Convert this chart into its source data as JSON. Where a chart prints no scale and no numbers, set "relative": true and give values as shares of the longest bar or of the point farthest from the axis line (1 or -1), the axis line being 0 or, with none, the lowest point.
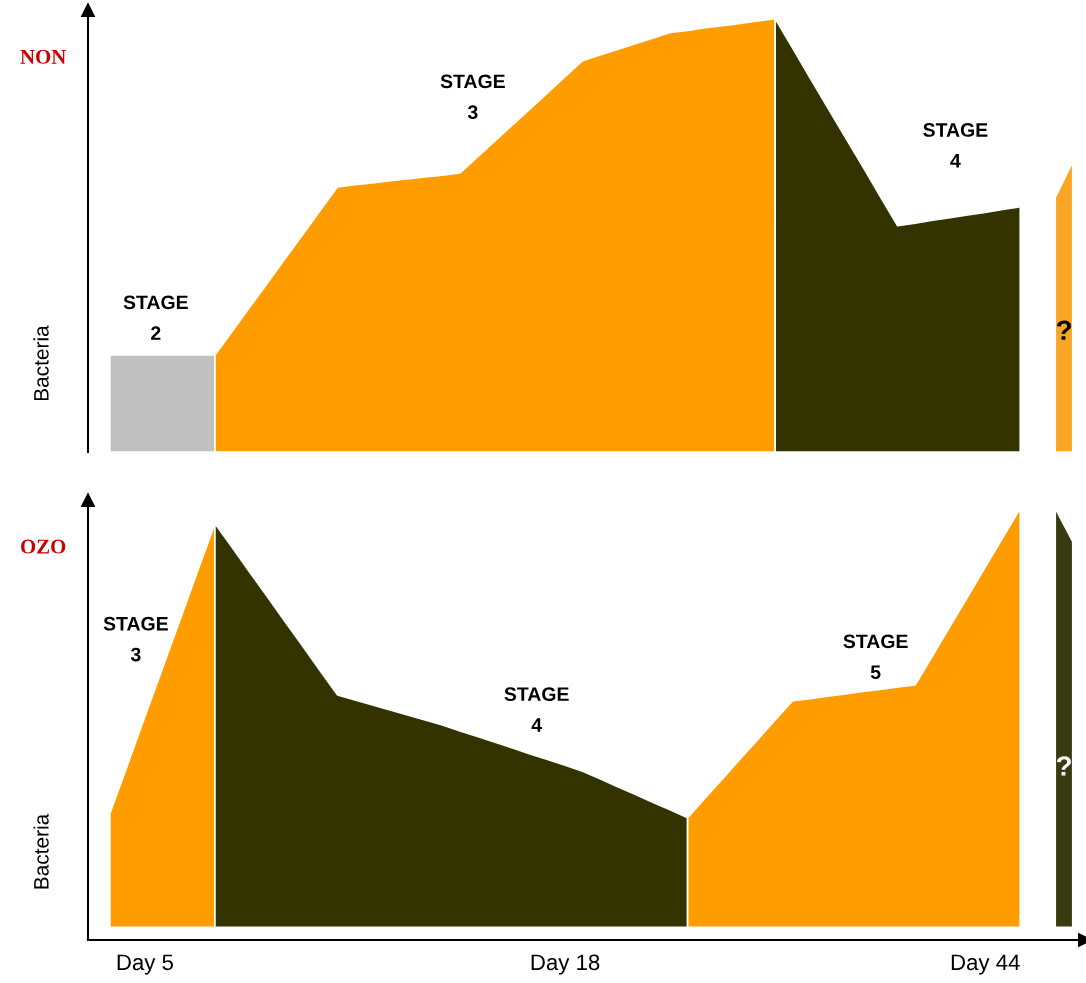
{
  "chart_data": [
    {
      "type": "area",
      "relative": true,
      "title": "NON",
      "ylabel": "Bacteria",
      "tick_labels": false,
      "legend": false,
      "grid": false,
      "categories": [
        null,
        null,
        null,
        null,
        null,
        null,
        null,
        null,
        null,
        null,
        null,
        null,
        null,
        null,
        null,
        null,
        null,
        null,
        null,
        null,
        null,
        null,
        null,
        null,
        null,
        null,
        null,
        null,
        null,
        null,
        null,
        null,
        null,
        null,
        null,
        null,
        null,
        null,
        null,
        null,
        null,
        null,
        null,
        null,
        null,
        null,
        null,
        null,
        null,
        null,
        null,
        null,
        null,
        null,
        null,
        null
      ],
      "series": [
        {
          "color": "#c0c0c0",
          "values": [
            0.224,
            0.224,
            0.224,
            0.224,
            0.224,
            0.224,
            0.224,
            null,
            null,
            null,
            null,
            null,
            null,
            null,
            null,
            null,
            null,
            null,
            null,
            null,
            null,
            null,
            null,
            null,
            null,
            null,
            null,
            null,
            null,
            null,
            null,
            null,
            null,
            null,
            null,
            null,
            null,
            null,
            null,
            null,
            null,
            null,
            null,
            null,
            null,
            null,
            null,
            null,
            null,
            null,
            null,
            null,
            null,
            null,
            null,
            null
          ]
        },
        {
          "color": "#ff9c00",
          "values": [
            null,
            null,
            null,
            null,
            null,
            null,
            0.224,
            0.279,
            0.335,
            0.39,
            0.446,
            0.501,
            0.557,
            0.612,
            0.617,
            0.621,
            0.626,
            0.63,
            0.635,
            0.639,
            0.644,
            0.681,
            0.718,
            0.755,
            0.792,
            0.829,
            0.866,
            0.903,
            0.916,
            0.929,
            0.942,
            0.955,
            0.968,
            0.973,
            0.979,
            0.984,
            0.989,
            0.995,
            1.0,
            null,
            null,
            null,
            null,
            null,
            null,
            null,
            null,
            null,
            null,
            null,
            null,
            null,
            null,
            null,
            null,
            null
          ]
        },
        {
          "color": "#333300",
          "values": [
            null,
            null,
            null,
            null,
            null,
            null,
            null,
            null,
            null,
            null,
            null,
            null,
            null,
            null,
            null,
            null,
            null,
            null,
            null,
            null,
            null,
            null,
            null,
            null,
            null,
            null,
            null,
            null,
            null,
            null,
            null,
            null,
            null,
            null,
            null,
            null,
            null,
            null,
            1.0,
            0.932,
            0.863,
            0.795,
            0.727,
            0.659,
            0.59,
            0.522,
            0.528,
            0.535,
            0.541,
            0.547,
            0.553,
            0.56,
            0.566,
            null,
            null,
            null
          ]
        },
        {
          "color": "#f9a625",
          "values": [
            null,
            null,
            null,
            null,
            null,
            null,
            null,
            null,
            null,
            null,
            null,
            null,
            null,
            null,
            null,
            null,
            null,
            null,
            null,
            null,
            null,
            null,
            null,
            null,
            null,
            null,
            null,
            null,
            null,
            null,
            null,
            null,
            null,
            null,
            null,
            null,
            null,
            null,
            null,
            null,
            null,
            null,
            null,
            null,
            null,
            null,
            null,
            null,
            null,
            null,
            null,
            null,
            null,
            null,
            0.587,
            0.67
          ]
        }
      ],
      "annotations": [
        "STAGE\n2",
        "STAGE\n3",
        "STAGE\n4",
        "?"
      ]
    },
    {
      "type": "area",
      "relative": true,
      "title": "OZO",
      "ylabel": "Bacteria",
      "tick_labels": "x",
      "legend": false,
      "grid": false,
      "categories": [
        null,
        null,
        "Day 5",
        null,
        null,
        null,
        null,
        null,
        null,
        null,
        null,
        null,
        null,
        null,
        null,
        null,
        null,
        null,
        null,
        null,
        null,
        null,
        null,
        null,
        null,
        null,
        "Day 18",
        null,
        null,
        null,
        null,
        null,
        null,
        null,
        null,
        null,
        null,
        null,
        null,
        null,
        null,
        null,
        null,
        null,
        null,
        null,
        null,
        null,
        null,
        null,
        "Day 44",
        null,
        null,
        null,
        null,
        null
      ],
      "series": [
        {
          "color": "#ff9c00",
          "values": [
            0.272,
            0.387,
            0.503,
            0.618,
            0.733,
            0.849,
            0.964,
            null,
            null,
            null,
            null,
            null,
            null,
            null,
            null,
            null,
            null,
            null,
            null,
            null,
            null,
            null,
            null,
            null,
            null,
            null,
            null,
            null,
            null,
            null,
            null,
            null,
            null,
            null,
            null,
            null,
            null,
            null,
            null,
            null,
            null,
            null,
            null,
            null,
            null,
            null,
            null,
            null,
            null,
            null,
            null,
            null,
            null,
            null,
            null,
            null
          ]
        },
        {
          "color": "#333300",
          "values": [
            null,
            null,
            null,
            null,
            null,
            null,
            0.964,
            0.906,
            0.847,
            0.789,
            0.73,
            0.672,
            0.613,
            0.555,
            0.543,
            0.531,
            0.519,
            0.507,
            0.495,
            0.483,
            0.469,
            0.456,
            0.442,
            0.428,
            0.414,
            0.401,
            0.387,
            0.373,
            0.355,
            0.336,
            0.318,
            0.299,
            0.281,
            0.262,
            null,
            null,
            null,
            null,
            null,
            null,
            null,
            null,
            null,
            null,
            null,
            null,
            null,
            null,
            null,
            null,
            null,
            null,
            null,
            null,
            null,
            null
          ]
        },
        {
          "color": "#ff9c00",
          "values": [
            null,
            null,
            null,
            null,
            null,
            null,
            null,
            null,
            null,
            null,
            null,
            null,
            null,
            null,
            null,
            null,
            null,
            null,
            null,
            null,
            null,
            null,
            null,
            null,
            null,
            null,
            null,
            null,
            null,
            null,
            null,
            null,
            null,
            0.262,
            0.309,
            0.355,
            0.402,
            0.448,
            0.495,
            0.541,
            0.546,
            0.552,
            0.557,
            0.563,
            0.568,
            0.574,
            0.579,
            0.649,
            0.719,
            0.789,
            0.86,
            0.93,
            1.0,
            null,
            null,
            null
          ]
        },
        {
          "color": "#3a3a10",
          "values": [
            null,
            null,
            null,
            null,
            null,
            null,
            null,
            null,
            null,
            null,
            null,
            null,
            null,
            null,
            null,
            null,
            null,
            null,
            null,
            null,
            null,
            null,
            null,
            null,
            null,
            null,
            null,
            null,
            null,
            null,
            null,
            null,
            null,
            null,
            null,
            null,
            null,
            null,
            null,
            null,
            null,
            null,
            null,
            null,
            null,
            null,
            null,
            null,
            null,
            null,
            null,
            null,
            null,
            null,
            1.0,
            0.921
          ]
        }
      ],
      "annotations": [
        "STAGE\n3",
        "STAGE\n4",
        "STAGE\n5",
        "?"
      ]
    }
  ]
}
